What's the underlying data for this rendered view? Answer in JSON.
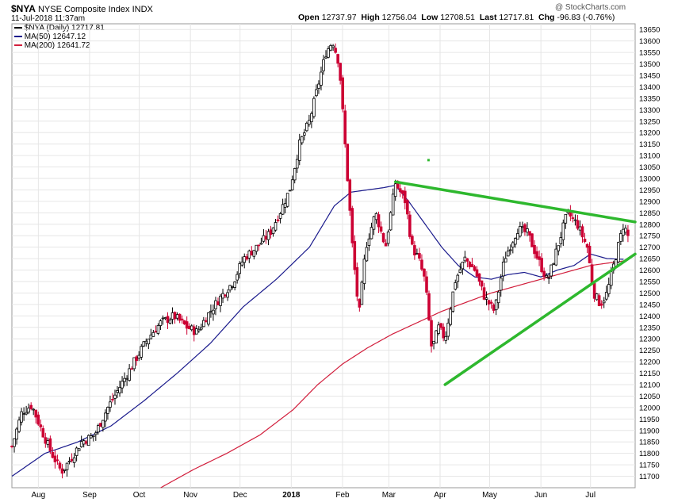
{
  "header": {
    "symbol": "$NYA",
    "name": "NYSE Composite Index",
    "exchange": "INDX",
    "timestamp": "11-Jul-2018 11:37am",
    "open_label": "Open",
    "open_value": "12737.97",
    "high_label": "High",
    "high_value": "12756.04",
    "low_label": "Low",
    "low_value": "12708.51",
    "last_label": "Last",
    "last_value": "12717.81",
    "chg_label": "Chg",
    "chg_value": "-96.83 (-0.76%)"
  },
  "watermark": "@ StockCharts.com",
  "legend": {
    "price_label": "$NYA (Daily) 12717.81",
    "ma50_label": "MA(50) 12647.12",
    "ma200_label": "MA(200) 12641.72"
  },
  "colors": {
    "price": "#000000",
    "down_candle": "#cc0033",
    "ma50": "#1a1a8c",
    "ma200": "#d21e3c",
    "trendline": "#2eb82e",
    "grid": "#e6e6e6"
  },
  "chart_data": {
    "type": "candlestick",
    "title": "$NYA NYSE Composite Index INDX",
    "timeframe": "Daily",
    "ylim": [
      11650,
      13675
    ],
    "y_ticks": [
      11700,
      11750,
      11800,
      11850,
      11900,
      11950,
      12000,
      12050,
      12100,
      12150,
      12200,
      12250,
      12300,
      12350,
      12400,
      12450,
      12500,
      12550,
      12600,
      12650,
      12700,
      12750,
      12800,
      12850,
      12900,
      12950,
      13000,
      13050,
      13100,
      13150,
      13200,
      13250,
      13300,
      13350,
      13400,
      13450,
      13500,
      13550,
      13600,
      13650
    ],
    "x_months": [
      {
        "label": "Aug",
        "day": 16
      },
      {
        "label": "Sep",
        "day": 47
      },
      {
        "label": "Oct",
        "day": 77
      },
      {
        "label": "Nov",
        "day": 108
      },
      {
        "label": "Dec",
        "day": 138
      },
      {
        "label": "2018",
        "day": 169
      },
      {
        "label": "Feb",
        "day": 200
      },
      {
        "label": "Mar",
        "day": 228
      },
      {
        "label": "Apr",
        "day": 259
      },
      {
        "label": "May",
        "day": 289
      },
      {
        "label": "Jun",
        "day": 320
      },
      {
        "label": "Jul",
        "day": 350
      }
    ],
    "x_range_days": [
      0,
      377
    ],
    "price_keypoints": [
      [
        0,
        11830
      ],
      [
        6,
        11980
      ],
      [
        12,
        12010
      ],
      [
        18,
        11900
      ],
      [
        24,
        11800
      ],
      [
        30,
        11720
      ],
      [
        36,
        11780
      ],
      [
        42,
        11850
      ],
      [
        50,
        11880
      ],
      [
        58,
        12000
      ],
      [
        66,
        12100
      ],
      [
        74,
        12200
      ],
      [
        82,
        12300
      ],
      [
        90,
        12370
      ],
      [
        98,
        12400
      ],
      [
        106,
        12350
      ],
      [
        112,
        12330
      ],
      [
        118,
        12400
      ],
      [
        126,
        12480
      ],
      [
        134,
        12550
      ],
      [
        140,
        12650
      ],
      [
        148,
        12700
      ],
      [
        156,
        12760
      ],
      [
        162,
        12850
      ],
      [
        168,
        12950
      ],
      [
        174,
        13150
      ],
      [
        180,
        13250
      ],
      [
        185,
        13400
      ],
      [
        190,
        13550
      ],
      [
        194,
        13600
      ],
      [
        198,
        13500
      ],
      [
        202,
        13100
      ],
      [
        206,
        12700
      ],
      [
        210,
        12400
      ],
      [
        214,
        12700
      ],
      [
        220,
        12850
      ],
      [
        226,
        12700
      ],
      [
        232,
        12980
      ],
      [
        238,
        12900
      ],
      [
        242,
        12700
      ],
      [
        246,
        12650
      ],
      [
        250,
        12550
      ],
      [
        254,
        12250
      ],
      [
        258,
        12350
      ],
      [
        262,
        12300
      ],
      [
        268,
        12550
      ],
      [
        274,
        12650
      ],
      [
        280,
        12600
      ],
      [
        286,
        12480
      ],
      [
        292,
        12420
      ],
      [
        298,
        12650
      ],
      [
        306,
        12780
      ],
      [
        312,
        12760
      ],
      [
        318,
        12650
      ],
      [
        324,
        12550
      ],
      [
        330,
        12700
      ],
      [
        336,
        12850
      ],
      [
        342,
        12800
      ],
      [
        348,
        12700
      ],
      [
        352,
        12500
      ],
      [
        356,
        12450
      ],
      [
        360,
        12500
      ],
      [
        364,
        12620
      ],
      [
        370,
        12800
      ],
      [
        374,
        12720
      ]
    ],
    "series": [
      {
        "name": "MA(50)",
        "keypoints": [
          [
            0,
            11700
          ],
          [
            20,
            11800
          ],
          [
            40,
            11850
          ],
          [
            60,
            11920
          ],
          [
            80,
            12030
          ],
          [
            100,
            12150
          ],
          [
            120,
            12280
          ],
          [
            140,
            12440
          ],
          [
            160,
            12560
          ],
          [
            180,
            12700
          ],
          [
            195,
            12880
          ],
          [
            205,
            12940
          ],
          [
            215,
            12950
          ],
          [
            225,
            12960
          ],
          [
            232,
            12970
          ],
          [
            240,
            12900
          ],
          [
            250,
            12800
          ],
          [
            260,
            12700
          ],
          [
            270,
            12620
          ],
          [
            280,
            12570
          ],
          [
            290,
            12560
          ],
          [
            300,
            12580
          ],
          [
            310,
            12590
          ],
          [
            320,
            12570
          ],
          [
            330,
            12600
          ],
          [
            340,
            12620
          ],
          [
            350,
            12670
          ],
          [
            360,
            12650
          ],
          [
            370,
            12647
          ]
        ]
      },
      {
        "name": "MA(200)",
        "keypoints": [
          [
            90,
            11650
          ],
          [
            110,
            11730
          ],
          [
            130,
            11800
          ],
          [
            150,
            11880
          ],
          [
            170,
            11990
          ],
          [
            185,
            12100
          ],
          [
            200,
            12190
          ],
          [
            215,
            12260
          ],
          [
            230,
            12320
          ],
          [
            245,
            12370
          ],
          [
            260,
            12420
          ],
          [
            275,
            12460
          ],
          [
            290,
            12500
          ],
          [
            305,
            12530
          ],
          [
            320,
            12560
          ],
          [
            335,
            12590
          ],
          [
            350,
            12620
          ],
          [
            365,
            12635
          ],
          [
            372,
            12642
          ]
        ]
      }
    ],
    "trendlines": [
      {
        "name": "upper-resistance",
        "from": [
          232,
          12985
        ],
        "to": [
          377,
          12810
        ]
      },
      {
        "name": "lower-support",
        "from": [
          262,
          12100
        ],
        "to": [
          377,
          12670
        ]
      }
    ],
    "markers": [
      {
        "name": "green-dot",
        "day": 252,
        "value": 13080
      }
    ]
  }
}
